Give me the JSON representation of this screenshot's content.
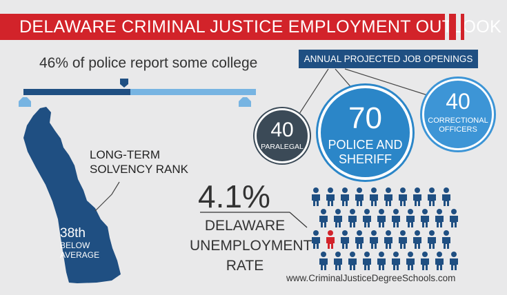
{
  "title": "DELAWARE CRIMINAL JUSTICE EMPLOYMENT OUTLOOK",
  "college": {
    "text": "46% of police report some college",
    "percent": 46
  },
  "job_openings": {
    "header": "ANNUAL PROJECTED JOB OPENINGS",
    "items": [
      {
        "value": "40",
        "label": "PARALEGAL"
      },
      {
        "value": "70",
        "label_line1": "POLICE AND",
        "label_line2": "SHERIFF"
      },
      {
        "value": "40",
        "label_line1": "CORRECTIONAL",
        "label_line2": "OFFICERS"
      }
    ]
  },
  "solvency": {
    "label_line1": "LONG-TERM",
    "label_line2": "SOLVENCY RANK",
    "rank": "38th",
    "rank_line2": "BELOW",
    "rank_line3": "AVERAGE"
  },
  "unemployment": {
    "value": "4.1%",
    "label_line1": "DELAWARE",
    "label_line2": "UNEMPLOYMENT",
    "label_line3": "RATE",
    "highlighted_count": 1,
    "total_people": 40
  },
  "website": "www.CriminalJusticeDegreeSchools.com",
  "colors": {
    "red": "#d2232a",
    "navy": "#1f4f82",
    "light_blue": "#77b4e2",
    "dark_slate": "#3b4a57",
    "blue": "#2b86c8",
    "background": "#e9e9ea"
  }
}
